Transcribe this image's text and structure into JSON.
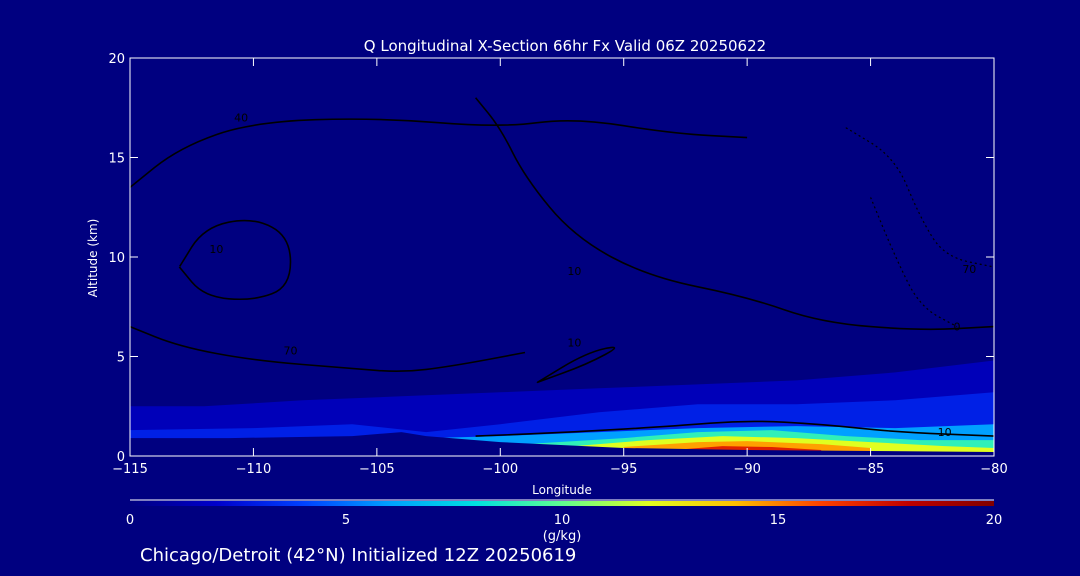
{
  "chart_data": {
    "type": "heatmap",
    "title": "Q Longitudinal X-Section 66hr  Fx Valid 06Z 20250622",
    "xlabel": "Longitude",
    "ylabel": "Altitude (km)",
    "xlim": [
      -115,
      -80
    ],
    "ylim": [
      0,
      20
    ],
    "x_ticks": [
      "-115",
      "-110",
      "-105",
      "-100",
      "-95",
      "-90",
      "-85",
      "-80"
    ],
    "y_ticks": [
      "0",
      "5",
      "10",
      "15",
      "20"
    ],
    "colorbar": {
      "label": "(g/kg)",
      "range": [
        0,
        20
      ],
      "ticks": [
        "0",
        "5",
        "10",
        "15",
        "20"
      ],
      "colors": [
        "#000080",
        "#0000cc",
        "#0040ff",
        "#00a0ff",
        "#00e0e0",
        "#60ff90",
        "#e0ff20",
        "#ffc000",
        "#ff4000",
        "#c00000",
        "#800000"
      ]
    },
    "fill_layers": [
      {
        "q": 1.5,
        "region": [
          [
            -115,
            2.5
          ],
          [
            -112,
            2.5
          ],
          [
            -108,
            2.8
          ],
          [
            -104,
            3
          ],
          [
            -100,
            3.2
          ],
          [
            -96,
            3.4
          ],
          [
            -92,
            3.6
          ],
          [
            -88,
            3.8
          ],
          [
            -84,
            4.2
          ],
          [
            -80,
            4.8
          ],
          [
            -80,
            0
          ],
          [
            -115,
            0
          ]
        ]
      },
      {
        "q": 3,
        "region": [
          [
            -115,
            1.3
          ],
          [
            -110,
            1.4
          ],
          [
            -106,
            1.6
          ],
          [
            -103,
            1.2
          ],
          [
            -100,
            1.6
          ],
          [
            -96,
            2.2
          ],
          [
            -92,
            2.6
          ],
          [
            -88,
            2.6
          ],
          [
            -84,
            2.8
          ],
          [
            -80,
            3.2
          ],
          [
            -80,
            0.5
          ],
          [
            -103,
            0.8
          ],
          [
            -115,
            0.9
          ]
        ]
      },
      {
        "q": 6,
        "region": [
          [
            -103,
            0.9
          ],
          [
            -100,
            1.0
          ],
          [
            -96,
            1.2
          ],
          [
            -92,
            1.4
          ],
          [
            -88,
            1.5
          ],
          [
            -84,
            1.4
          ],
          [
            -80,
            1.6
          ],
          [
            -80,
            0.2
          ],
          [
            -92,
            0.2
          ],
          [
            -103,
            0.6
          ]
        ]
      },
      {
        "q": 9,
        "region": [
          [
            -99,
            0.6
          ],
          [
            -95,
            0.9
          ],
          [
            -92,
            1.2
          ],
          [
            -89,
            1.3
          ],
          [
            -86,
            1.0
          ],
          [
            -83,
            0.8
          ],
          [
            -80,
            0.8
          ],
          [
            -80,
            0.1
          ],
          [
            -92,
            0.1
          ],
          [
            -99,
            0.3
          ]
        ]
      },
      {
        "q": 12,
        "region": [
          [
            -97,
            0.5
          ],
          [
            -94,
            0.8
          ],
          [
            -91,
            1.0
          ],
          [
            -88,
            0.9
          ],
          [
            -85,
            0.7
          ],
          [
            -82,
            0.5
          ],
          [
            -80,
            0.4
          ],
          [
            -80,
            0.05
          ],
          [
            -97,
            0.1
          ]
        ]
      },
      {
        "q": 14.5,
        "region": [
          [
            -95,
            0.45
          ],
          [
            -92,
            0.7
          ],
          [
            -90,
            0.75
          ],
          [
            -87,
            0.6
          ],
          [
            -85,
            0.4
          ],
          [
            -85,
            0.05
          ],
          [
            -95,
            0.1
          ]
        ]
      },
      {
        "q": 17,
        "region": [
          [
            -93,
            0.3
          ],
          [
            -91,
            0.5
          ],
          [
            -89,
            0.45
          ],
          [
            -87,
            0.3
          ],
          [
            -87,
            0.05
          ],
          [
            -93,
            0.05
          ]
        ]
      }
    ],
    "terrain": [
      [
        -115,
        0.9
      ],
      [
        -111,
        0.9
      ],
      [
        -106,
        1.0
      ],
      [
        -104,
        1.2
      ],
      [
        -103,
        1.0
      ],
      [
        -100,
        0.7
      ],
      [
        -95,
        0.4
      ],
      [
        -90,
        0.3
      ],
      [
        -85,
        0.25
      ],
      [
        -80,
        0.2
      ]
    ],
    "contours": [
      {
        "label": "10",
        "label_at": [
          -111.5,
          10.2
        ],
        "points": [
          [
            -113,
            9.5
          ],
          [
            -112,
            11.5
          ],
          [
            -110,
            12
          ],
          [
            -108.5,
            11
          ],
          [
            -108.5,
            8.5
          ],
          [
            -110,
            7.8
          ],
          [
            -112,
            8
          ],
          [
            -113,
            9.5
          ]
        ]
      },
      {
        "label": "40",
        "label_at": [
          -110.5,
          16.8
        ],
        "points": [
          [
            -115,
            13.5
          ],
          [
            -113,
            15.5
          ],
          [
            -110,
            16.8
          ],
          [
            -105,
            17
          ],
          [
            -100,
            16.5
          ],
          [
            -97,
            17
          ],
          [
            -93,
            16.2
          ],
          [
            -90,
            16
          ]
        ]
      },
      {
        "label": "70",
        "label_at": [
          -108.5,
          5.1
        ],
        "points": [
          [
            -115,
            6.5
          ],
          [
            -113,
            5.5
          ],
          [
            -110,
            4.8
          ],
          [
            -106,
            4.4
          ],
          [
            -104,
            4.2
          ],
          [
            -102,
            4.5
          ],
          [
            -99,
            5.2
          ]
        ]
      },
      {
        "label": "10",
        "label_at": [
          -82,
          1.0
        ],
        "points": [
          [
            -101,
            1.0
          ],
          [
            -97,
            1.2
          ],
          [
            -93,
            1.5
          ],
          [
            -90,
            1.8
          ],
          [
            -87,
            1.6
          ],
          [
            -84,
            1.2
          ],
          [
            -80,
            1.0
          ]
        ]
      },
      {
        "label": "10",
        "label_at": [
          -97,
          5.5
        ],
        "points": [
          [
            -98.5,
            3.7
          ],
          [
            -96.5,
            4.6
          ],
          [
            -95,
            5.6
          ],
          [
            -96.5,
            5.2
          ],
          [
            -98.5,
            3.7
          ]
        ]
      },
      {
        "label": "10",
        "label_at": [
          -97,
          9.1
        ],
        "points": [
          [
            -101,
            18
          ],
          [
            -100,
            16.5
          ],
          [
            -99,
            14
          ],
          [
            -97,
            11
          ],
          [
            -94,
            9
          ],
          [
            -90,
            8
          ],
          [
            -87,
            6.7
          ],
          [
            -83,
            6.3
          ],
          [
            -80,
            6.5
          ]
        ]
      }
    ],
    "dashed_contours": [
      {
        "label": "70",
        "label_at": [
          -81,
          9.2
        ],
        "points": [
          [
            -86,
            16.5
          ],
          [
            -84,
            15
          ],
          [
            -83,
            12
          ],
          [
            -82,
            10
          ],
          [
            -80,
            9.5
          ]
        ]
      },
      {
        "label": "0",
        "label_at": [
          -81.5,
          6.3
        ],
        "points": [
          [
            -85,
            13
          ],
          [
            -84,
            10
          ],
          [
            -83,
            7.5
          ],
          [
            -81.5,
            6.5
          ]
        ]
      }
    ],
    "contour_labels_extra": [
      "70",
      "10",
      "10",
      "70"
    ],
    "footer": "Chicago/Detroit (42°N) Initialized 12Z 20250619"
  }
}
